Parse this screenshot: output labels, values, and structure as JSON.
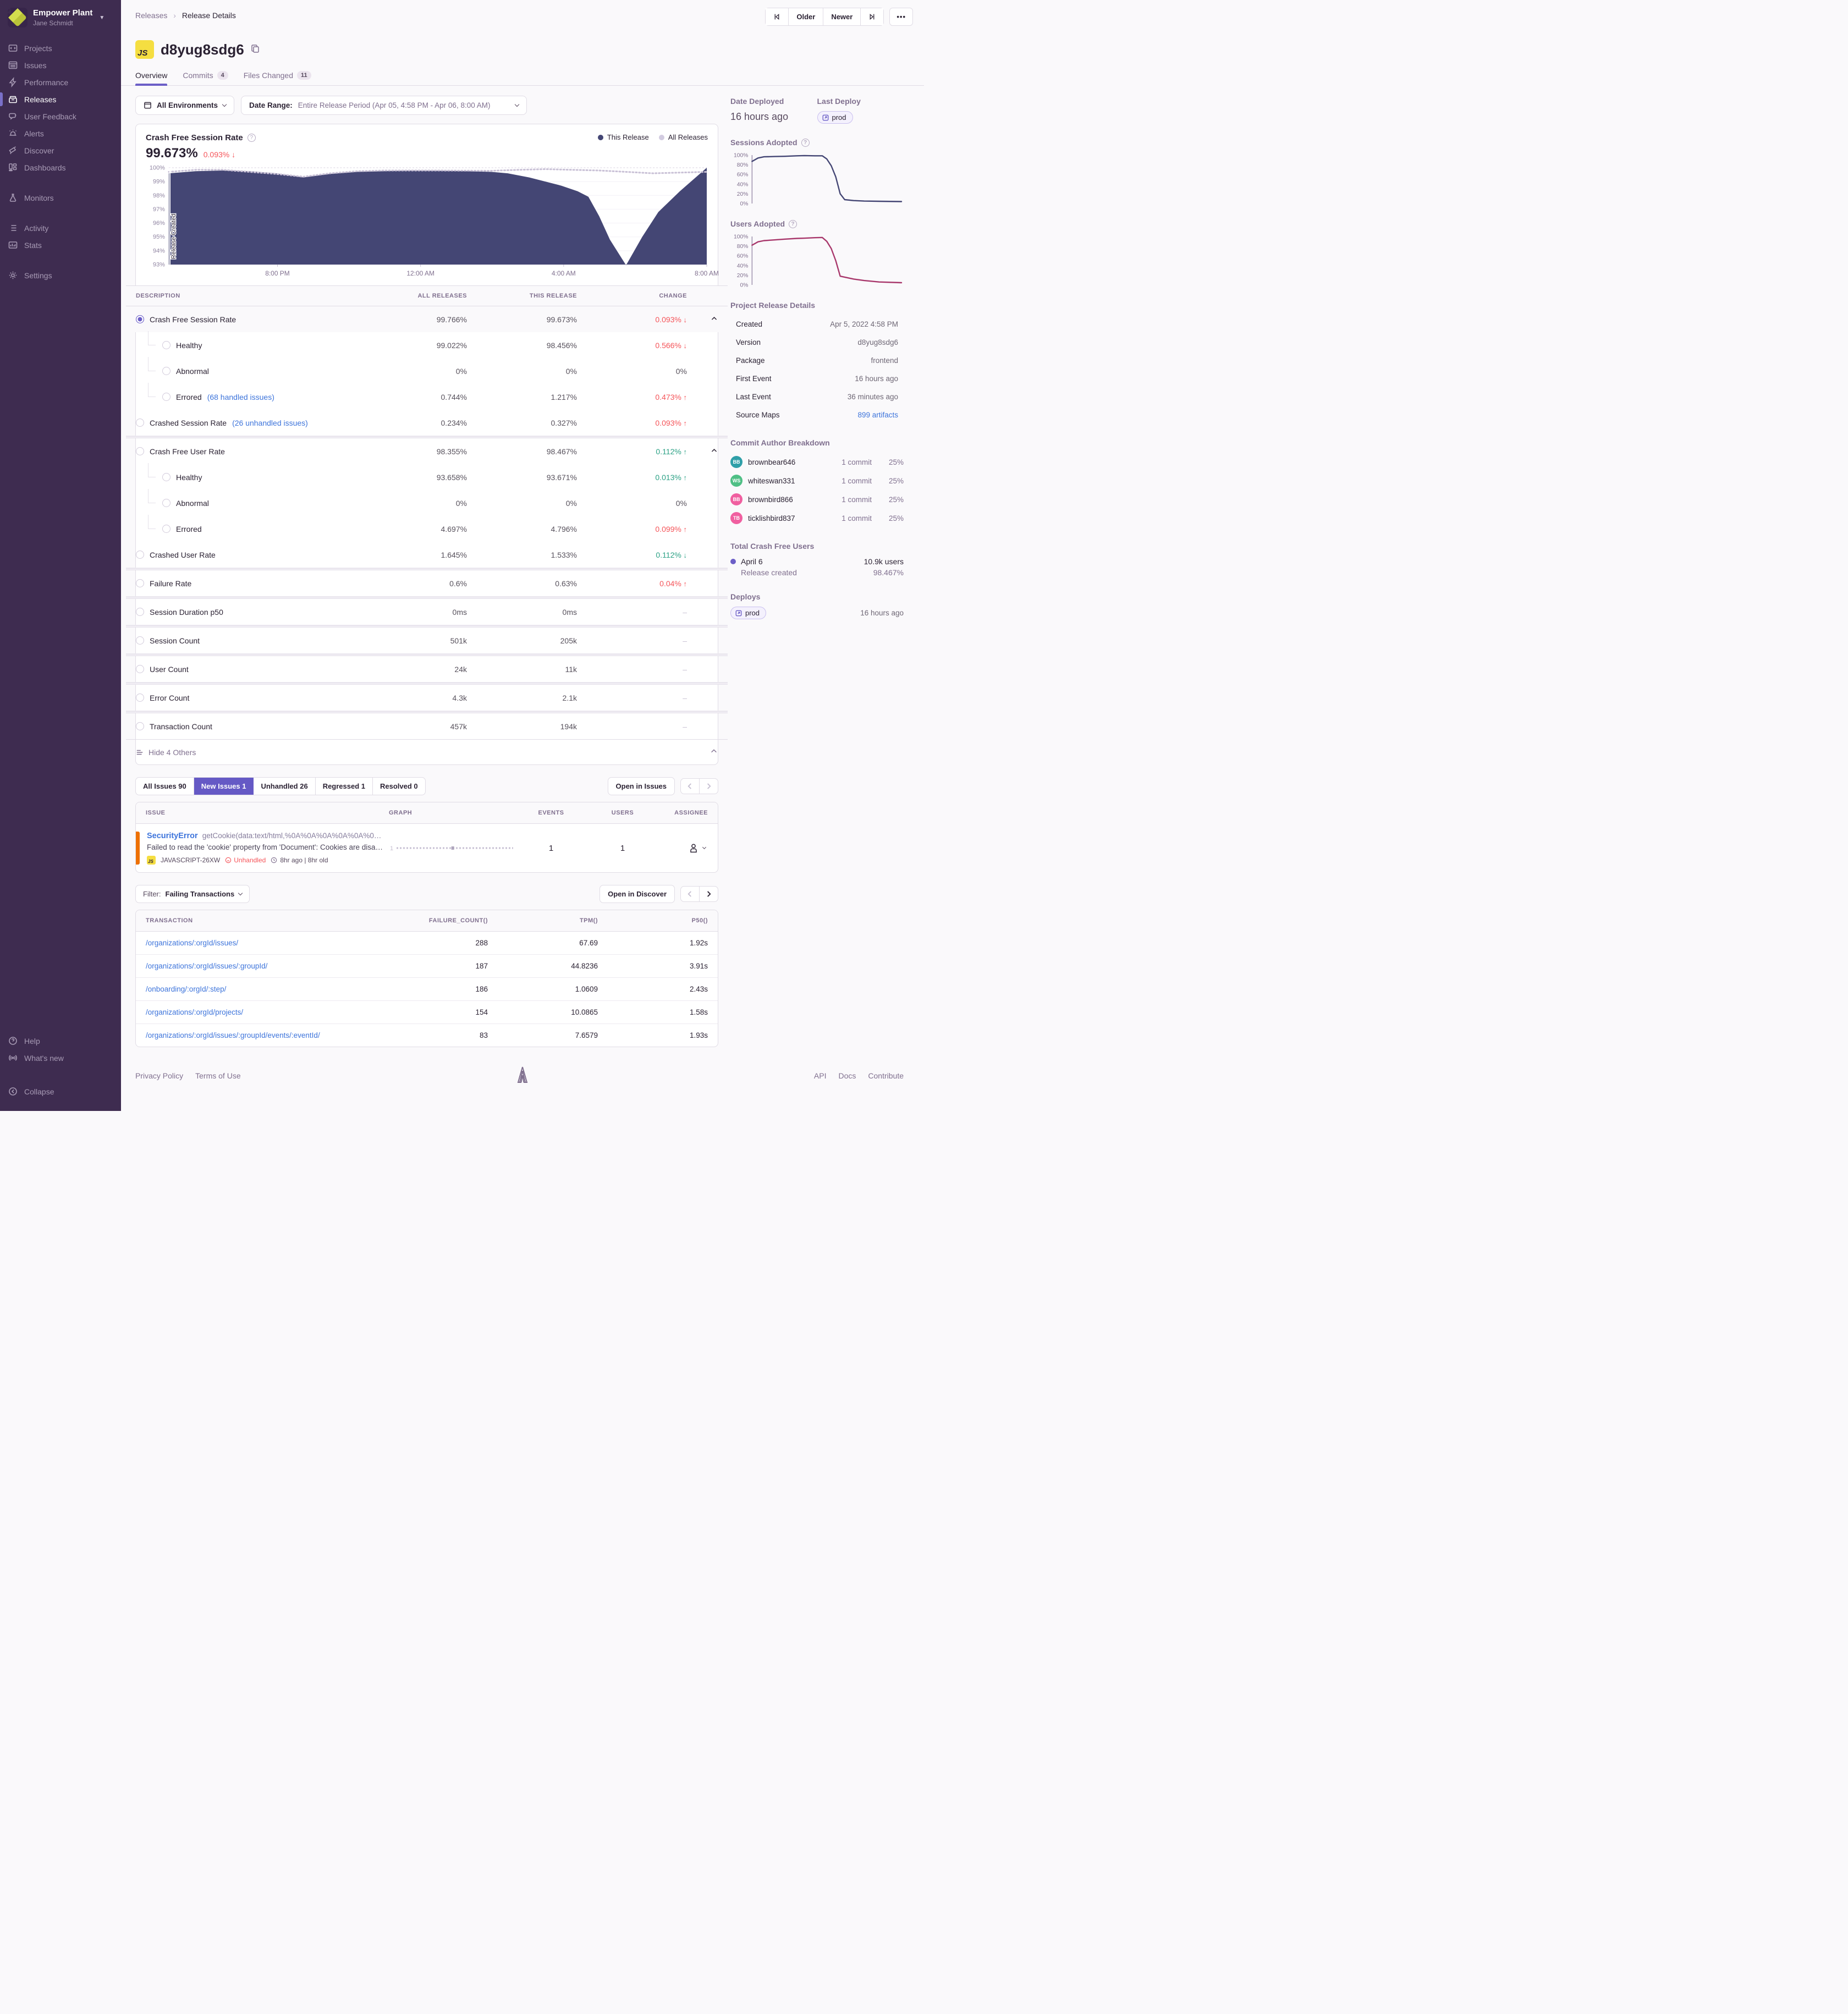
{
  "sidebar": {
    "org_name": "Empower Plant",
    "user_name": "Jane Schmidt",
    "items": [
      {
        "label": "Projects",
        "icon": "projects-icon",
        "active": false,
        "group": 0
      },
      {
        "label": "Issues",
        "icon": "issues-icon",
        "active": false,
        "group": 0
      },
      {
        "label": "Performance",
        "icon": "performance-icon",
        "active": false,
        "group": 0
      },
      {
        "label": "Releases",
        "icon": "releases-icon",
        "active": true,
        "group": 0
      },
      {
        "label": "User Feedback",
        "icon": "user-feedback-icon",
        "active": false,
        "group": 0
      },
      {
        "label": "Alerts",
        "icon": "alerts-icon",
        "active": false,
        "group": 0
      },
      {
        "label": "Discover",
        "icon": "discover-icon",
        "active": false,
        "group": 0
      },
      {
        "label": "Dashboards",
        "icon": "dashboards-icon",
        "active": false,
        "group": 0
      },
      {
        "label": "Monitors",
        "icon": "monitors-icon",
        "active": false,
        "group": 1
      },
      {
        "label": "Activity",
        "icon": "activity-icon",
        "active": false,
        "group": 2
      },
      {
        "label": "Stats",
        "icon": "stats-icon",
        "active": false,
        "group": 2
      },
      {
        "label": "Settings",
        "icon": "settings-icon",
        "active": false,
        "group": 3
      }
    ],
    "footer_items": [
      {
        "label": "Help",
        "icon": "help-icon"
      },
      {
        "label": "What's new",
        "icon": "broadcast-icon"
      }
    ],
    "collapse_label": "Collapse"
  },
  "topbar": {
    "breadcrumb": {
      "parent": "Releases",
      "current": "Release Details"
    },
    "older_label": "Older",
    "newer_label": "Newer"
  },
  "release": {
    "project_badge": "JS",
    "title": "d8yug8sdg6",
    "tabs": [
      {
        "label": "Overview",
        "count": "",
        "active": true
      },
      {
        "label": "Commits",
        "count": "4",
        "active": false
      },
      {
        "label": "Files Changed",
        "count": "11",
        "active": false
      }
    ]
  },
  "filters": {
    "environment": "All Environments",
    "date_label": "Date Range:",
    "date_value": "Entire Release Period (Apr 05, 4:58 PM - Apr 06, 8:00 AM)"
  },
  "chart_data": [
    {
      "id": "main",
      "type": "area",
      "title": "Crash Free Session Rate",
      "value": "99.673%",
      "change": "0.093%",
      "change_direction": "down",
      "legend": [
        {
          "label": "This Release",
          "color": "#444674"
        },
        {
          "label": "All Releases",
          "color": "#D2CBE0"
        }
      ],
      "annotation": "Release Created",
      "ylim": [
        93,
        100
      ],
      "yticks": [
        93,
        94,
        95,
        96,
        97,
        98,
        99,
        100
      ],
      "ytick_suffix": "%",
      "xticks": [
        {
          "label": "8:00 PM",
          "pos": 0.202
        },
        {
          "label": "12:00 AM",
          "pos": 0.468
        },
        {
          "label": "4:00 AM",
          "pos": 0.734
        },
        {
          "label": "8:00 AM",
          "pos": 1.0
        }
      ],
      "series": [
        {
          "name": "This Release",
          "color": "#444674",
          "fill": true,
          "x": [
            0,
            0.05,
            0.1,
            0.15,
            0.2,
            0.25,
            0.3,
            0.35,
            0.4,
            0.45,
            0.5,
            0.55,
            0.6,
            0.63,
            0.67,
            0.7,
            0.73,
            0.76,
            0.78,
            0.8,
            0.82,
            0.85,
            0.88,
            0.91,
            0.95,
            1.0
          ],
          "y": [
            99.6,
            99.75,
            99.8,
            99.75,
            99.6,
            99.3,
            99.55,
            99.7,
            99.75,
            99.8,
            99.78,
            99.75,
            99.7,
            99.6,
            99.3,
            99.0,
            98.7,
            98.3,
            97.9,
            96.5,
            94.8,
            92.95,
            95.0,
            96.8,
            98.3,
            100.0
          ]
        },
        {
          "name": "All Releases",
          "color": "#C9C1D6",
          "dotted": true,
          "x": [
            0,
            0.05,
            0.1,
            0.15,
            0.2,
            0.25,
            0.3,
            0.35,
            0.4,
            0.5,
            0.6,
            0.65,
            0.7,
            0.75,
            0.8,
            0.85,
            0.9,
            0.95,
            1.0
          ],
          "y": [
            99.7,
            99.85,
            99.85,
            99.7,
            99.55,
            99.35,
            99.6,
            99.75,
            99.8,
            99.8,
            99.78,
            99.85,
            99.9,
            99.85,
            99.8,
            99.7,
            99.6,
            99.65,
            99.7
          ]
        }
      ]
    },
    {
      "id": "sessions_adopted",
      "type": "line",
      "title": "Sessions Adopted",
      "ylim": [
        0,
        100
      ],
      "yticks": [
        0,
        20,
        40,
        60,
        80,
        100
      ],
      "ytick_suffix": "%",
      "series": [
        {
          "name": "Sessions Adopted",
          "color": "#444674",
          "x": [
            0,
            0.04,
            0.08,
            0.15,
            0.22,
            0.3,
            0.35,
            0.42,
            0.47,
            0.5,
            0.53,
            0.56,
            0.59,
            0.62,
            0.68,
            0.75,
            0.85,
            1.0
          ],
          "y": [
            87,
            94,
            96.5,
            97,
            97.5,
            98.5,
            99,
            98.5,
            98.5,
            92,
            78,
            55,
            20,
            8,
            6,
            5,
            4.5,
            4
          ]
        }
      ]
    },
    {
      "id": "users_adopted",
      "type": "line",
      "title": "Users Adopted",
      "ylim": [
        0,
        100
      ],
      "yticks": [
        0,
        20,
        40,
        60,
        80,
        100
      ],
      "ytick_suffix": "%",
      "series": [
        {
          "name": "Users Adopted",
          "color": "#A8376B",
          "x": [
            0,
            0.04,
            0.08,
            0.15,
            0.22,
            0.3,
            0.35,
            0.42,
            0.47,
            0.5,
            0.53,
            0.56,
            0.59,
            0.62,
            0.68,
            0.75,
            0.85,
            1.0
          ],
          "y": [
            82,
            89,
            91.5,
            93,
            94.5,
            96,
            96.5,
            97.5,
            98,
            90,
            75,
            50,
            18,
            16,
            12,
            9,
            6,
            4.5
          ]
        }
      ]
    },
    {
      "id": "issue_sparkline",
      "type": "line",
      "title": "Issue events graph",
      "label": "1",
      "style": "dashed",
      "series": [
        {
          "name": "events",
          "color": "#C8C1D4",
          "x": [
            0,
            1
          ],
          "y": [
            1,
            1
          ],
          "marker_at": 0.47
        }
      ]
    }
  ],
  "metrics_table": {
    "headers": [
      "DESCRIPTION",
      "ALL RELEASES",
      "THIS RELEASE",
      "CHANGE"
    ],
    "groups": [
      {
        "rows": [
          {
            "label": "Crash Free Session Rate",
            "link": "",
            "all": "99.766%",
            "this": "99.673%",
            "change": "0.093%",
            "dir": "down",
            "tone": "bad",
            "child": false,
            "radio": "selected",
            "chevron": true,
            "selbg": true
          },
          {
            "label": "Healthy",
            "link": "",
            "all": "99.022%",
            "this": "98.456%",
            "change": "0.566%",
            "dir": "down",
            "tone": "bad",
            "child": true,
            "radio": "plain",
            "chevron": false,
            "selbg": false
          },
          {
            "label": "Abnormal",
            "link": "",
            "all": "0%",
            "this": "0%",
            "change": "0%",
            "dir": "",
            "tone": "",
            "child": true,
            "radio": "plain",
            "chevron": false,
            "selbg": false
          },
          {
            "label": "Errored",
            "link": "(68 handled issues)",
            "all": "0.744%",
            "this": "1.217%",
            "change": "0.473%",
            "dir": "up",
            "tone": "bad",
            "child": true,
            "radio": "plain",
            "chevron": false,
            "selbg": false
          },
          {
            "label": "Crashed Session Rate",
            "link": "(26 unhandled issues)",
            "all": "0.234%",
            "this": "0.327%",
            "change": "0.093%",
            "dir": "up",
            "tone": "bad",
            "child": false,
            "radio": "plain",
            "chevron": false,
            "selbg": false
          }
        ]
      },
      {
        "rows": [
          {
            "label": "Crash Free User Rate",
            "link": "",
            "all": "98.355%",
            "this": "98.467%",
            "change": "0.112%",
            "dir": "up",
            "tone": "good",
            "child": false,
            "radio": "plain",
            "chevron": true,
            "selbg": false
          },
          {
            "label": "Healthy",
            "link": "",
            "all": "93.658%",
            "this": "93.671%",
            "change": "0.013%",
            "dir": "up",
            "tone": "good",
            "child": true,
            "radio": "plain",
            "chevron": false,
            "selbg": false
          },
          {
            "label": "Abnormal",
            "link": "",
            "all": "0%",
            "this": "0%",
            "change": "0%",
            "dir": "",
            "tone": "",
            "child": true,
            "radio": "plain",
            "chevron": false,
            "selbg": false
          },
          {
            "label": "Errored",
            "link": "",
            "all": "4.697%",
            "this": "4.796%",
            "change": "0.099%",
            "dir": "up",
            "tone": "bad",
            "child": true,
            "radio": "plain",
            "chevron": false,
            "selbg": false
          },
          {
            "label": "Crashed User Rate",
            "link": "",
            "all": "1.645%",
            "this": "1.533%",
            "change": "0.112%",
            "dir": "down",
            "tone": "good",
            "child": false,
            "radio": "plain",
            "chevron": false,
            "selbg": false
          }
        ]
      },
      {
        "rows": [
          {
            "label": "Failure Rate",
            "link": "",
            "all": "0.6%",
            "this": "0.63%",
            "change": "0.04%",
            "dir": "up",
            "tone": "bad",
            "child": false,
            "radio": "plain",
            "chevron": false,
            "selbg": false
          }
        ]
      },
      {
        "rows": [
          {
            "label": "Session Duration p50",
            "link": "",
            "all": "0ms",
            "this": "0ms",
            "change": "–",
            "dir": "",
            "tone": "none",
            "child": false,
            "radio": "plain",
            "chevron": false,
            "selbg": false
          }
        ]
      },
      {
        "rows": [
          {
            "label": "Session Count",
            "link": "",
            "all": "501k",
            "this": "205k",
            "change": "–",
            "dir": "",
            "tone": "none",
            "child": false,
            "radio": "plain",
            "chevron": false,
            "selbg": false
          }
        ]
      },
      {
        "rows": [
          {
            "label": "User Count",
            "link": "",
            "all": "24k",
            "this": "11k",
            "change": "–",
            "dir": "",
            "tone": "none",
            "child": false,
            "radio": "plain",
            "chevron": false,
            "selbg": false
          }
        ]
      },
      {
        "rows": [
          {
            "label": "Error Count",
            "link": "",
            "all": "4.3k",
            "this": "2.1k",
            "change": "–",
            "dir": "",
            "tone": "none",
            "child": false,
            "radio": "plain",
            "chevron": false,
            "selbg": false
          }
        ]
      },
      {
        "rows": [
          {
            "label": "Transaction Count",
            "link": "",
            "all": "457k",
            "this": "194k",
            "change": "–",
            "dir": "",
            "tone": "none",
            "child": false,
            "radio": "plain",
            "chevron": false,
            "selbg": false
          }
        ]
      }
    ],
    "footer_label": "Hide 4 Others"
  },
  "issues": {
    "tabs": [
      {
        "label": "All Issues",
        "count": "90",
        "active": false
      },
      {
        "label": "New Issues",
        "count": "1",
        "active": true
      },
      {
        "label": "Unhandled",
        "count": "26",
        "active": false
      },
      {
        "label": "Regressed",
        "count": "1",
        "active": false
      },
      {
        "label": "Resolved",
        "count": "0",
        "active": false
      }
    ],
    "open_button": "Open in Issues",
    "headers": [
      "ISSUE",
      "GRAPH",
      "EVENTS",
      "USERS",
      "ASSIGNEE"
    ],
    "row": {
      "type": "SecurityError",
      "culprit": "getCookie(data:text/html,%0A%0A%0A%0A%0A%0…",
      "message": "Failed to read the 'cookie' property from 'Document': Cookies are disa…",
      "project_badge": "JS",
      "short_id": "JAVASCRIPT-26XW",
      "unhandled": "Unhandled",
      "age": "8hr ago | 8hr old",
      "events": "1",
      "users": "1"
    }
  },
  "transactions": {
    "filter_label": "Filter:",
    "filter_value": "Failing Transactions",
    "open_button": "Open in Discover",
    "headers": [
      "TRANSACTION",
      "FAILURE_COUNT()",
      "TPM()",
      "P50()"
    ],
    "rows": [
      {
        "transaction": "/organizations/:orgId/issues/",
        "failure_count": "288",
        "tpm": "67.69",
        "p50": "1.92s"
      },
      {
        "transaction": "/organizations/:orgId/issues/:groupId/",
        "failure_count": "187",
        "tpm": "44.8236",
        "p50": "3.91s"
      },
      {
        "transaction": "/onboarding/:orgId/:step/",
        "failure_count": "186",
        "tpm": "1.0609",
        "p50": "2.43s"
      },
      {
        "transaction": "/organizations/:orgId/projects/",
        "failure_count": "154",
        "tpm": "10.0865",
        "p50": "1.58s"
      },
      {
        "transaction": "/organizations/:orgId/issues/:groupId/events/:eventId/",
        "failure_count": "83",
        "tpm": "7.6579",
        "p50": "1.93s"
      }
    ]
  },
  "right_panel": {
    "date_deployed_label": "Date Deployed",
    "date_deployed_value": "16 hours ago",
    "last_deploy_label": "Last Deploy",
    "last_deploy_badge": "prod",
    "sessions_adopted_label": "Sessions Adopted",
    "users_adopted_label": "Users Adopted",
    "details_title": "Project Release Details",
    "details_rows": [
      {
        "label": "Created",
        "value": "Apr 5, 2022 4:58 PM",
        "link": false
      },
      {
        "label": "Version",
        "value": "d8yug8sdg6",
        "link": false
      },
      {
        "label": "Package",
        "value": "frontend",
        "link": false
      },
      {
        "label": "First Event",
        "value": "16 hours ago",
        "link": false
      },
      {
        "label": "Last Event",
        "value": "36 minutes ago",
        "link": false
      },
      {
        "label": "Source Maps",
        "value": "899 artifacts",
        "link": true
      }
    ],
    "commits_title": "Commit Author Breakdown",
    "authors": [
      {
        "initials": "BB",
        "color": "#2F9FA8",
        "name": "brownbear646",
        "commits": "1 commit",
        "pct": "25%"
      },
      {
        "initials": "WS",
        "color": "#4FBF85",
        "name": "whiteswan331",
        "commits": "1 commit",
        "pct": "25%"
      },
      {
        "initials": "BB",
        "color": "#F05FA0",
        "name": "brownbird866",
        "commits": "1 commit",
        "pct": "25%"
      },
      {
        "initials": "TB",
        "color": "#F05FA0",
        "name": "ticklishbird837",
        "commits": "1 commit",
        "pct": "25%"
      }
    ],
    "crash_free_title": "Total Crash Free Users",
    "crash_free_date": "April 6",
    "crash_free_users": "10.9k users",
    "crash_free_sub": "Release created",
    "crash_free_pct": "98.467%",
    "deploys_title": "Deploys",
    "deploys_badge": "prod",
    "deploys_time": "16 hours ago"
  },
  "footer": {
    "left_links": [
      "Privacy Policy",
      "Terms of Use"
    ],
    "right_links": [
      "API",
      "Docs",
      "Contribute"
    ]
  },
  "colors": {
    "accent_purple": "#6C5FC7",
    "active_tab_purple": "#6559C5",
    "chart_navy": "#444674",
    "users_line": "#A8376B",
    "red": "#F55459",
    "green": "#2BA185",
    "link_blue": "#3D74DB",
    "js_yellow": "#F5DE41",
    "sidebar_bg": "#3E2C50",
    "issue_level_orange": "#EE7002"
  }
}
